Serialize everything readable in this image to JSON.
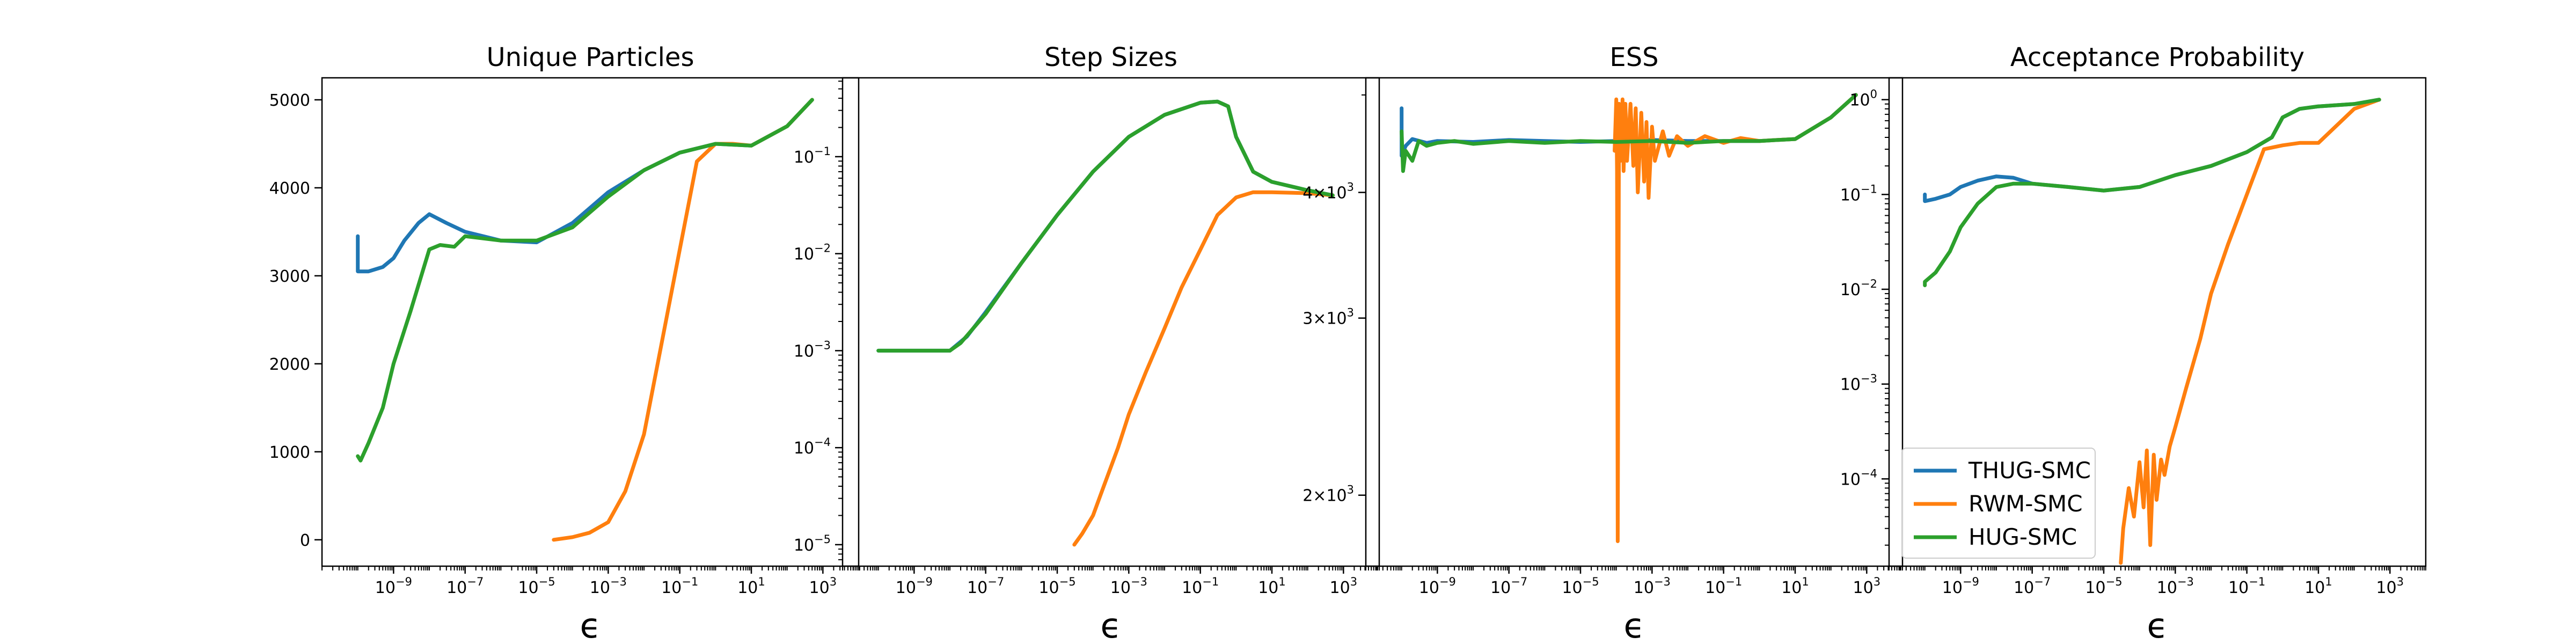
{
  "colors": {
    "THUG-SMC": "#1f77b4",
    "RWM-SMC": "#ff7f0e",
    "HUG-SMC": "#2ca02c"
  },
  "legend": {
    "placement": "lower-left",
    "panel": 3,
    "entries": [
      "THUG-SMC",
      "RWM-SMC",
      "HUG-SMC"
    ]
  },
  "chart_data": [
    {
      "type": "line",
      "title": "Unique Particles",
      "xlabel": "ϵ",
      "ylabel": "",
      "xscale": "log",
      "yscale": "linear",
      "xlim": [
        1e-11,
        10000.0
      ],
      "ylim": [
        -300,
        5250
      ],
      "xticks": [
        {
          "v": 1e-09,
          "b": "10",
          "e": "−9"
        },
        {
          "v": 1e-07,
          "b": "10",
          "e": "−7"
        },
        {
          "v": 1e-05,
          "b": "10",
          "e": "−5"
        },
        {
          "v": 0.001,
          "b": "10",
          "e": "−3"
        },
        {
          "v": 0.1,
          "b": "10",
          "e": "−1"
        },
        {
          "v": 10,
          "b": "10",
          "e": "1"
        },
        {
          "v": 1000,
          "b": "10",
          "e": "3"
        }
      ],
      "yticks": [
        {
          "v": 0,
          "t": "0"
        },
        {
          "v": 1000,
          "t": "1000"
        },
        {
          "v": 2000,
          "t": "2000"
        },
        {
          "v": 3000,
          "t": "3000"
        },
        {
          "v": 4000,
          "t": "4000"
        },
        {
          "v": 5000,
          "t": "5000"
        }
      ],
      "series": [
        {
          "name": "THUG-SMC",
          "x": [
            1e-10,
            1e-10,
            2e-10,
            5e-10,
            1e-09,
            2e-09,
            5e-09,
            1e-08,
            3e-08,
            1e-07,
            1e-06,
            1e-05,
            0.0001,
            0.001,
            0.01,
            0.1,
            1,
            10,
            100,
            500
          ],
          "y": [
            3450,
            3050,
            3050,
            3100,
            3200,
            3400,
            3600,
            3700,
            3600,
            3500,
            3400,
            3380,
            3600,
            3950,
            4200,
            4400,
            4500,
            4480,
            4700,
            5000
          ]
        },
        {
          "name": "RWM-SMC",
          "x": [
            3e-05,
            0.0001,
            0.0003,
            0.001,
            0.003,
            0.01,
            0.03,
            0.1,
            0.3,
            1,
            3,
            10,
            100,
            500
          ],
          "y": [
            0,
            30,
            80,
            200,
            550,
            1200,
            2200,
            3300,
            4300,
            4500,
            4500,
            4480,
            4700,
            5000
          ]
        },
        {
          "name": "HUG-SMC",
          "x": [
            1e-10,
            1.2e-10,
            2e-10,
            5e-10,
            1e-09,
            3e-09,
            1e-08,
            2e-08,
            5e-08,
            1e-07,
            1e-06,
            1e-05,
            0.0001,
            0.001,
            0.01,
            0.1,
            1,
            10,
            100,
            500
          ],
          "y": [
            950,
            900,
            1100,
            1500,
            2000,
            2600,
            3300,
            3350,
            3330,
            3450,
            3400,
            3400,
            3550,
            3900,
            4200,
            4400,
            4500,
            4480,
            4700,
            5000
          ]
        }
      ]
    },
    {
      "type": "line",
      "title": "Step Sizes",
      "xlabel": "ϵ",
      "ylabel": "",
      "xscale": "log",
      "yscale": "log",
      "xlim": [
        1e-11,
        10000.0
      ],
      "ylim": [
        6e-06,
        0.65
      ],
      "xticks": [
        {
          "v": 1e-09,
          "b": "10",
          "e": "−9"
        },
        {
          "v": 1e-07,
          "b": "10",
          "e": "−7"
        },
        {
          "v": 1e-05,
          "b": "10",
          "e": "−5"
        },
        {
          "v": 0.001,
          "b": "10",
          "e": "−3"
        },
        {
          "v": 0.1,
          "b": "10",
          "e": "−1"
        },
        {
          "v": 10,
          "b": "10",
          "e": "1"
        },
        {
          "v": 1000,
          "b": "10",
          "e": "3"
        }
      ],
      "yticks": [
        {
          "v": 1e-05,
          "b": "10",
          "e": "−5"
        },
        {
          "v": 0.0001,
          "b": "10",
          "e": "−4"
        },
        {
          "v": 0.001,
          "b": "10",
          "e": "−3"
        },
        {
          "v": 0.01,
          "b": "10",
          "e": "−2"
        },
        {
          "v": 0.1,
          "b": "10",
          "e": "−1"
        }
      ],
      "series": [
        {
          "name": "THUG-SMC",
          "x": [
            1e-10,
            1e-09,
            1e-08,
            3e-08,
            1e-07,
            1e-06,
            1e-05,
            0.0001,
            0.001,
            0.01,
            0.1,
            0.3,
            0.6,
            1,
            3,
            10,
            100,
            500
          ],
          "y": [
            0.001,
            0.001,
            0.001,
            0.0014,
            0.0025,
            0.008,
            0.025,
            0.07,
            0.16,
            0.27,
            0.36,
            0.37,
            0.33,
            0.16,
            0.07,
            0.055,
            0.045,
            0.04
          ]
        },
        {
          "name": "RWM-SMC",
          "x": [
            3e-05,
            5e-05,
            0.0001,
            0.0002,
            0.0005,
            0.001,
            0.003,
            0.01,
            0.03,
            0.1,
            0.3,
            1,
            3,
            10,
            100,
            500
          ],
          "y": [
            1e-05,
            1.3e-05,
            2e-05,
            4e-05,
            0.0001,
            0.00022,
            0.0006,
            0.0017,
            0.0045,
            0.011,
            0.025,
            0.038,
            0.043,
            0.043,
            0.042,
            0.04
          ]
        },
        {
          "name": "HUG-SMC",
          "x": [
            1e-10,
            1e-09,
            1e-08,
            2e-08,
            1e-07,
            1e-06,
            1e-05,
            0.0001,
            0.001,
            0.01,
            0.1,
            0.3,
            0.6,
            1,
            3,
            10,
            100,
            500
          ],
          "y": [
            0.001,
            0.001,
            0.001,
            0.0012,
            0.0024,
            0.008,
            0.025,
            0.07,
            0.16,
            0.27,
            0.36,
            0.37,
            0.33,
            0.16,
            0.07,
            0.055,
            0.045,
            0.04
          ]
        }
      ]
    },
    {
      "type": "line",
      "title": "ESS",
      "xlabel": "ϵ",
      "ylabel": "",
      "xscale": "log",
      "yscale": "log",
      "xlim": [
        1e-11,
        10000.0
      ],
      "ylim": [
        1700,
        5200
      ],
      "xticks": [
        {
          "v": 1e-09,
          "b": "10",
          "e": "−9"
        },
        {
          "v": 1e-07,
          "b": "10",
          "e": "−7"
        },
        {
          "v": 1e-05,
          "b": "10",
          "e": "−5"
        },
        {
          "v": 0.001,
          "b": "10",
          "e": "−3"
        },
        {
          "v": 0.1,
          "b": "10",
          "e": "−1"
        },
        {
          "v": 10,
          "b": "10",
          "e": "1"
        },
        {
          "v": 1000,
          "b": "10",
          "e": "3"
        }
      ],
      "yticks": [
        {
          "v": 2000,
          "b": "2×10",
          "e": "3"
        },
        {
          "v": 3000,
          "b": "3×10",
          "e": "3"
        },
        {
          "v": 4000,
          "b": "4×10",
          "e": "3"
        }
      ],
      "series": [
        {
          "name": "THUG-SMC",
          "x": [
            1e-10,
            1e-10,
            1.3e-10,
            2e-10,
            5e-10,
            1e-09,
            1e-08,
            1e-07,
            1e-06,
            1e-05,
            0.0001,
            0.001,
            0.01,
            0.1,
            1,
            10,
            100,
            500
          ],
          "y": [
            4850,
            4350,
            4450,
            4520,
            4480,
            4500,
            4490,
            4510,
            4500,
            4490,
            4500,
            4510,
            4500,
            4500,
            4500,
            4520,
            4750,
            5000
          ]
        },
        {
          "name": "RWM-SMC",
          "x": [
            9e-05,
            0.0001,
            0.000105,
            0.00011,
            0.00012,
            0.00013,
            0.00015,
            0.00016,
            0.00018,
            0.0002,
            0.00025,
            0.0003,
            0.00035,
            0.0004,
            0.0005,
            0.0006,
            0.0007,
            0.0008,
            0.001,
            0.0012,
            0.002,
            0.003,
            0.005,
            0.01,
            0.03,
            0.1,
            0.3,
            1,
            3,
            10,
            100,
            500
          ],
          "y": [
            4400,
            4950,
            4200,
            1800,
            4900,
            4300,
            4950,
            4200,
            4900,
            4300,
            4900,
            4250,
            4850,
            4000,
            4800,
            4100,
            4700,
            3950,
            4650,
            4300,
            4600,
            4350,
            4550,
            4450,
            4550,
            4480,
            4530,
            4500,
            4510,
            4520,
            4750,
            5000
          ]
        },
        {
          "name": "HUG-SMC",
          "x": [
            1e-10,
            1.1e-10,
            1.3e-10,
            2e-10,
            3e-10,
            5e-10,
            1e-09,
            3e-09,
            1e-08,
            1e-07,
            1e-06,
            1e-05,
            0.0001,
            0.001,
            0.01,
            0.1,
            1,
            10,
            100,
            500
          ],
          "y": [
            4600,
            4200,
            4400,
            4300,
            4500,
            4450,
            4480,
            4500,
            4470,
            4500,
            4480,
            4500,
            4490,
            4500,
            4480,
            4500,
            4500,
            4520,
            4750,
            5000
          ]
        }
      ]
    },
    {
      "type": "line",
      "title": "Acceptance Probability",
      "xlabel": "ϵ",
      "ylabel": "",
      "xscale": "log",
      "yscale": "log",
      "xlim": [
        1e-11,
        10000.0
      ],
      "ylim": [
        1.2e-05,
        1.7
      ],
      "xticks": [
        {
          "v": 1e-09,
          "b": "10",
          "e": "−9"
        },
        {
          "v": 1e-07,
          "b": "10",
          "e": "−7"
        },
        {
          "v": 1e-05,
          "b": "10",
          "e": "−5"
        },
        {
          "v": 0.001,
          "b": "10",
          "e": "−3"
        },
        {
          "v": 0.1,
          "b": "10",
          "e": "−1"
        },
        {
          "v": 10,
          "b": "10",
          "e": "1"
        },
        {
          "v": 1000,
          "b": "10",
          "e": "3"
        }
      ],
      "yticks": [
        {
          "v": 0.0001,
          "b": "10",
          "e": "−4"
        },
        {
          "v": 0.001,
          "b": "10",
          "e": "−3"
        },
        {
          "v": 0.01,
          "b": "10",
          "e": "−2"
        },
        {
          "v": 0.1,
          "b": "10",
          "e": "−1"
        },
        {
          "v": 1,
          "b": "10",
          "e": "0"
        }
      ],
      "series": [
        {
          "name": "THUG-SMC",
          "x": [
            1e-10,
            1e-10,
            2e-10,
            5e-10,
            1e-09,
            3e-09,
            1e-08,
            3e-08,
            1e-07,
            1e-06,
            1e-05,
            0.0001,
            0.001,
            0.01,
            0.1,
            0.5,
            1,
            3,
            10,
            100,
            500
          ],
          "y": [
            0.1,
            0.085,
            0.09,
            0.1,
            0.12,
            0.14,
            0.155,
            0.15,
            0.13,
            0.12,
            0.11,
            0.12,
            0.16,
            0.2,
            0.28,
            0.4,
            0.65,
            0.8,
            0.85,
            0.9,
            1.0
          ]
        },
        {
          "name": "RWM-SMC",
          "x": [
            3e-05,
            3.5e-05,
            5e-05,
            7e-05,
            0.0001,
            0.00013,
            0.00016,
            0.0002,
            0.00025,
            0.0003,
            0.0004,
            0.0005,
            0.0007,
            0.001,
            0.002,
            0.005,
            0.01,
            0.03,
            0.1,
            0.3,
            1,
            3,
            10,
            100,
            500
          ],
          "y": [
            1.3e-05,
            3e-05,
            8e-05,
            4e-05,
            0.00015,
            5e-05,
            0.0002,
            2e-05,
            0.00018,
            6e-05,
            0.00016,
            0.00011,
            0.00022,
            0.00035,
            0.0009,
            0.003,
            0.009,
            0.03,
            0.1,
            0.3,
            0.33,
            0.35,
            0.35,
            0.8,
            1.0
          ]
        },
        {
          "name": "HUG-SMC",
          "x": [
            1e-10,
            1e-10,
            2e-10,
            5e-10,
            1e-09,
            3e-09,
            1e-08,
            3e-08,
            1e-07,
            1e-06,
            1e-05,
            0.0001,
            0.001,
            0.01,
            0.1,
            0.5,
            1,
            3,
            10,
            100,
            500
          ],
          "y": [
            0.011,
            0.012,
            0.015,
            0.025,
            0.045,
            0.08,
            0.12,
            0.13,
            0.13,
            0.12,
            0.11,
            0.12,
            0.16,
            0.2,
            0.28,
            0.4,
            0.65,
            0.8,
            0.85,
            0.9,
            1.0
          ]
        }
      ]
    }
  ]
}
